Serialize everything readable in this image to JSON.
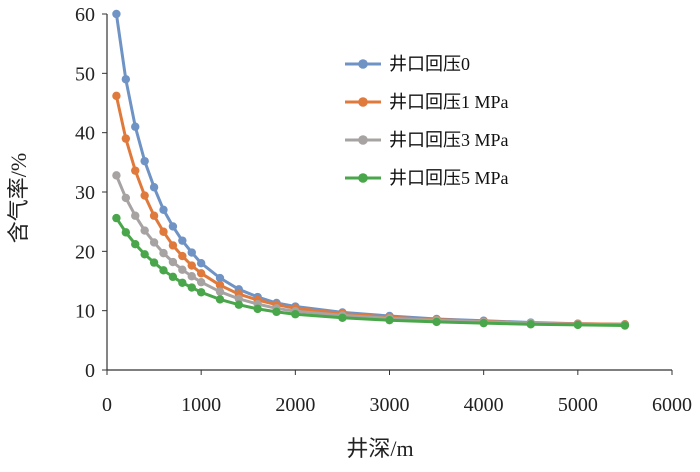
{
  "chart_data": {
    "type": "line",
    "title": "",
    "xlabel": "井深/m",
    "ylabel": "含气率/%",
    "xlim": [
      0,
      6000
    ],
    "ylim": [
      0,
      60
    ],
    "xticks": [
      "0",
      "1000",
      "2000",
      "3000",
      "4000",
      "5000",
      "6000"
    ],
    "yticks": [
      "0",
      "10",
      "20",
      "30",
      "40",
      "50",
      "60"
    ],
    "grid": false,
    "legend_position": "top-right",
    "x": [
      100,
      200,
      300,
      400,
      500,
      600,
      700,
      800,
      900,
      1000,
      1200,
      1400,
      1600,
      1800,
      2000,
      2500,
      3000,
      3500,
      4000,
      4500,
      5000,
      5500
    ],
    "series": [
      {
        "name": "井口回压0",
        "color": "#6f93c4",
        "values": [
          60.0,
          49.0,
          41.0,
          35.2,
          30.8,
          27.0,
          24.2,
          21.8,
          19.8,
          18.0,
          15.5,
          13.6,
          12.3,
          11.3,
          10.7,
          9.7,
          9.1,
          8.6,
          8.3,
          8.0,
          7.8,
          7.7
        ]
      },
      {
        "name": "井口回压1  MPa",
        "color": "#e07a3c",
        "values": [
          46.2,
          39.0,
          33.6,
          29.4,
          26.0,
          23.3,
          21.0,
          19.2,
          17.6,
          16.3,
          14.3,
          12.8,
          11.8,
          11.0,
          10.4,
          9.5,
          8.9,
          8.5,
          8.2,
          7.9,
          7.8,
          7.7
        ]
      },
      {
        "name": "井口回压3  MPa",
        "color": "#a8a3a3",
        "values": [
          32.8,
          29.0,
          26.0,
          23.5,
          21.5,
          19.7,
          18.2,
          16.9,
          15.8,
          14.8,
          13.2,
          12.0,
          11.1,
          10.4,
          9.9,
          9.2,
          8.7,
          8.4,
          8.1,
          7.9,
          7.7,
          7.6
        ]
      },
      {
        "name": "井口回压5  MPa",
        "color": "#4aa64a",
        "values": [
          25.6,
          23.2,
          21.2,
          19.5,
          18.1,
          16.8,
          15.7,
          14.7,
          13.9,
          13.1,
          11.9,
          11.0,
          10.3,
          9.8,
          9.4,
          8.8,
          8.4,
          8.1,
          7.9,
          7.7,
          7.6,
          7.5
        ]
      }
    ]
  }
}
